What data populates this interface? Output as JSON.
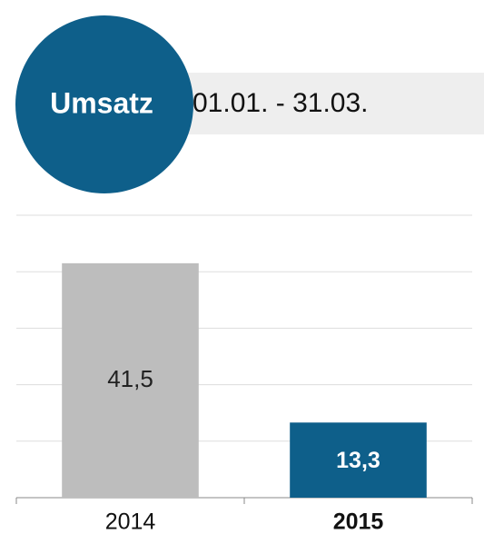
{
  "chart_data": {
    "type": "bar",
    "title": "Umsatz",
    "subtitle": "01.01. - 31.03.",
    "categories": [
      "2014",
      "2015"
    ],
    "values": [
      41.5,
      13.3
    ],
    "value_labels": [
      "41,5",
      "13,3"
    ],
    "colors": [
      "#bdbdbd",
      "#0e5f8a"
    ],
    "highlight": 1,
    "ylim": [
      0,
      50
    ],
    "yticks": [
      0,
      10,
      20,
      30,
      40,
      50
    ],
    "grid": true
  }
}
